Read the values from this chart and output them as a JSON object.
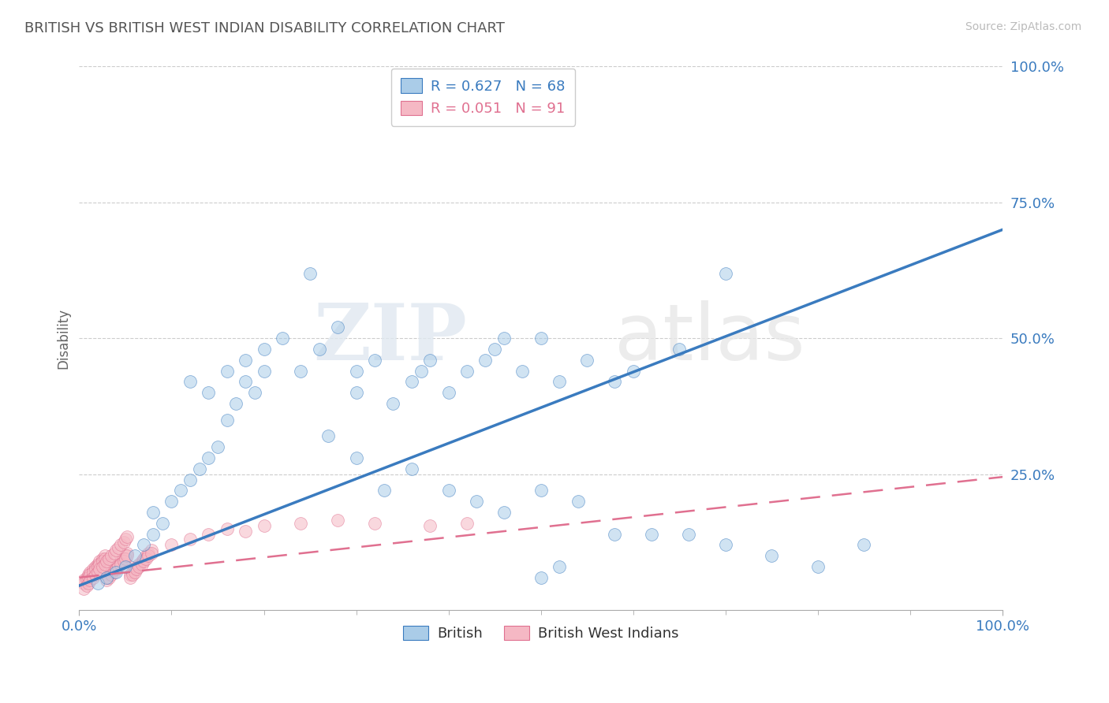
{
  "title": "BRITISH VS BRITISH WEST INDIAN DISABILITY CORRELATION CHART",
  "source_text": "Source: ZipAtlas.com",
  "ylabel": "Disability",
  "xlim": [
    0,
    1.0
  ],
  "ylim": [
    0,
    1.0
  ],
  "yticks": [
    0.25,
    0.5,
    0.75,
    1.0
  ],
  "ytick_labels": [
    "25.0%",
    "50.0%",
    "75.0%",
    "100.0%"
  ],
  "xtick_labels": [
    "0.0%",
    "100.0%"
  ],
  "background_color": "#ffffff",
  "grid_color": "#cccccc",
  "blue_color": "#aacce8",
  "blue_line_color": "#3a7bbf",
  "pink_color": "#f5b8c4",
  "pink_line_color": "#e07090",
  "r_blue": 0.627,
  "n_blue": 68,
  "r_pink": 0.051,
  "n_pink": 91,
  "legend_label_blue": "British",
  "legend_label_pink": "British West Indians",
  "watermark_zip": "ZIP",
  "watermark_atlas": "atlas",
  "blue_scatter_x": [
    0.02,
    0.03,
    0.04,
    0.05,
    0.06,
    0.07,
    0.08,
    0.08,
    0.09,
    0.1,
    0.11,
    0.12,
    0.13,
    0.14,
    0.15,
    0.16,
    0.17,
    0.18,
    0.19,
    0.2,
    0.12,
    0.14,
    0.16,
    0.18,
    0.2,
    0.22,
    0.24,
    0.25,
    0.26,
    0.28,
    0.3,
    0.3,
    0.32,
    0.34,
    0.36,
    0.37,
    0.38,
    0.4,
    0.42,
    0.44,
    0.45,
    0.46,
    0.48,
    0.5,
    0.52,
    0.55,
    0.58,
    0.6,
    0.65,
    0.7,
    0.27,
    0.3,
    0.33,
    0.36,
    0.4,
    0.43,
    0.46,
    0.5,
    0.54,
    0.58,
    0.62,
    0.66,
    0.7,
    0.75,
    0.8,
    0.85,
    0.5,
    0.52
  ],
  "blue_scatter_y": [
    0.05,
    0.06,
    0.07,
    0.08,
    0.1,
    0.12,
    0.14,
    0.18,
    0.16,
    0.2,
    0.22,
    0.24,
    0.26,
    0.28,
    0.3,
    0.35,
    0.38,
    0.42,
    0.4,
    0.44,
    0.42,
    0.4,
    0.44,
    0.46,
    0.48,
    0.5,
    0.44,
    0.62,
    0.48,
    0.52,
    0.4,
    0.44,
    0.46,
    0.38,
    0.42,
    0.44,
    0.46,
    0.4,
    0.44,
    0.46,
    0.48,
    0.5,
    0.44,
    0.5,
    0.42,
    0.46,
    0.42,
    0.44,
    0.48,
    0.62,
    0.32,
    0.28,
    0.22,
    0.26,
    0.22,
    0.2,
    0.18,
    0.22,
    0.2,
    0.14,
    0.14,
    0.14,
    0.12,
    0.1,
    0.08,
    0.12,
    0.06,
    0.08
  ],
  "pink_scatter_x": [
    0.005,
    0.008,
    0.01,
    0.012,
    0.015,
    0.018,
    0.02,
    0.022,
    0.025,
    0.028,
    0.03,
    0.032,
    0.035,
    0.038,
    0.04,
    0.042,
    0.045,
    0.048,
    0.05,
    0.052,
    0.055,
    0.058,
    0.06,
    0.062,
    0.065,
    0.068,
    0.07,
    0.072,
    0.075,
    0.078,
    0.005,
    0.008,
    0.01,
    0.012,
    0.015,
    0.018,
    0.02,
    0.022,
    0.025,
    0.028,
    0.03,
    0.032,
    0.035,
    0.038,
    0.04,
    0.042,
    0.045,
    0.048,
    0.05,
    0.052,
    0.055,
    0.058,
    0.06,
    0.062,
    0.065,
    0.068,
    0.07,
    0.072,
    0.075,
    0.078,
    0.005,
    0.008,
    0.01,
    0.012,
    0.015,
    0.018,
    0.02,
    0.022,
    0.025,
    0.028,
    0.03,
    0.032,
    0.035,
    0.038,
    0.04,
    0.042,
    0.045,
    0.048,
    0.05,
    0.052,
    0.1,
    0.12,
    0.14,
    0.16,
    0.18,
    0.2,
    0.24,
    0.28,
    0.32,
    0.38,
    0.42
  ],
  "pink_scatter_y": [
    0.055,
    0.06,
    0.065,
    0.07,
    0.075,
    0.08,
    0.085,
    0.09,
    0.095,
    0.1,
    0.06,
    0.065,
    0.07,
    0.075,
    0.08,
    0.085,
    0.09,
    0.095,
    0.1,
    0.105,
    0.065,
    0.07,
    0.075,
    0.08,
    0.085,
    0.09,
    0.095,
    0.1,
    0.105,
    0.11,
    0.05,
    0.055,
    0.06,
    0.065,
    0.07,
    0.075,
    0.08,
    0.085,
    0.09,
    0.095,
    0.055,
    0.06,
    0.065,
    0.07,
    0.075,
    0.08,
    0.085,
    0.09,
    0.095,
    0.1,
    0.06,
    0.065,
    0.07,
    0.075,
    0.08,
    0.085,
    0.09,
    0.095,
    0.1,
    0.105,
    0.04,
    0.045,
    0.05,
    0.055,
    0.06,
    0.065,
    0.07,
    0.075,
    0.08,
    0.085,
    0.09,
    0.095,
    0.1,
    0.105,
    0.11,
    0.115,
    0.12,
    0.125,
    0.13,
    0.135,
    0.12,
    0.13,
    0.14,
    0.15,
    0.145,
    0.155,
    0.16,
    0.165,
    0.16,
    0.155,
    0.16
  ],
  "blue_line_x": [
    0.0,
    1.0
  ],
  "blue_line_y": [
    0.045,
    0.7
  ],
  "pink_line_x": [
    0.0,
    1.0
  ],
  "pink_line_y": [
    0.06,
    0.245
  ]
}
